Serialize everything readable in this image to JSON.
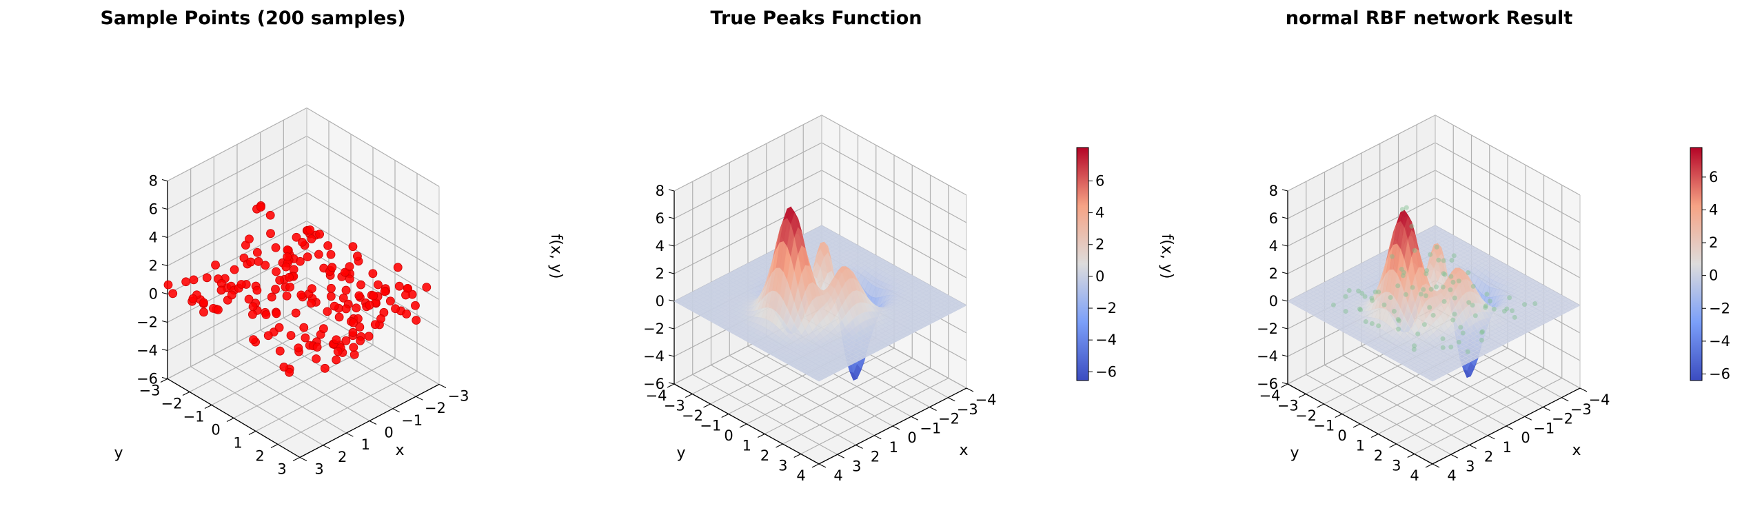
{
  "figure": {
    "panels": [
      {
        "title": "Sample Points (200 samples)",
        "xlabel": "x",
        "ylabel": "y",
        "zlabel": "",
        "colorbar": false
      },
      {
        "title": "True Peaks Function",
        "xlabel": "x",
        "ylabel": "y",
        "zlabel": "f(x, y)",
        "colorbar": true
      },
      {
        "title": "normal RBF network Result",
        "xlabel": "x",
        "ylabel": "y",
        "zlabel": "f(x, y)",
        "colorbar": true
      }
    ]
  },
  "chart_data": [
    {
      "type": "scatter",
      "title": "Sample Points (200 samples)",
      "xlabel": "x",
      "ylabel": "y",
      "zlabel": "",
      "xlim": [
        -3,
        3
      ],
      "ylim": [
        -3,
        3
      ],
      "zlim": [
        -6,
        8
      ],
      "xticks": [
        -3,
        -2,
        -1,
        0,
        1,
        2,
        3
      ],
      "yticks": [
        -3,
        -2,
        -1,
        0,
        1,
        2,
        3
      ],
      "zticks": [
        -6,
        -4,
        -2,
        0,
        2,
        4,
        6,
        8
      ],
      "n_points": 200,
      "point_color": "#ff0000",
      "grid": true
    },
    {
      "type": "surface",
      "title": "True Peaks Function",
      "function": "peaks",
      "xlabel": "x",
      "ylabel": "y",
      "zlabel": "f(x, y)",
      "xlim": [
        -4,
        4
      ],
      "ylim": [
        -4,
        4
      ],
      "zlim": [
        -6,
        8
      ],
      "xticks": [
        -4,
        -3,
        -2,
        -1,
        0,
        1,
        2,
        3,
        4
      ],
      "yticks": [
        -4,
        -3,
        -2,
        -1,
        0,
        1,
        2,
        3,
        4
      ],
      "zticks": [
        -6,
        -4,
        -2,
        0,
        2,
        4,
        6,
        8
      ],
      "colormap": "coolwarm",
      "colorbar_ticks": [
        -6,
        -4,
        -2,
        0,
        2,
        4,
        6
      ],
      "color_range": [
        -6.55,
        8.1
      ],
      "grid": true
    },
    {
      "type": "surface",
      "title": "normal RBF network Result",
      "function": "rbf-approximation-of-peaks",
      "xlabel": "x",
      "ylabel": "y",
      "zlabel": "f(x, y)",
      "xlim": [
        -4,
        4
      ],
      "ylim": [
        -4,
        4
      ],
      "zlim": [
        -6,
        8
      ],
      "xticks": [
        -4,
        -3,
        -2,
        -1,
        0,
        1,
        2,
        3,
        4
      ],
      "yticks": [
        -4,
        -3,
        -2,
        -1,
        0,
        1,
        2,
        3,
        4
      ],
      "zticks": [
        -6,
        -4,
        -2,
        0,
        2,
        4,
        6,
        8
      ],
      "colormap": "coolwarm",
      "colorbar_ticks": [
        -6,
        -4,
        -2,
        0,
        2,
        4,
        6
      ],
      "color_range": [
        -6.4,
        7.8
      ],
      "overlay_points_color": "#7fbf8f",
      "grid": true
    }
  ]
}
